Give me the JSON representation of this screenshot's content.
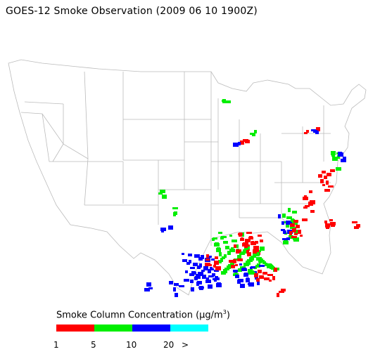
{
  "title": "GOES-12 Smoke Observation (2009 06 10  1900Z)",
  "legend": {
    "title_main": "Smoke Column Concentration (",
    "title_unit": "μg/m",
    "title_exp": "3",
    "title_close": ")",
    "segments": [
      {
        "name": "1-5",
        "color": "#ff0000"
      },
      {
        "name": "5-10",
        "color": "#00ee00"
      },
      {
        "name": "10-20",
        "color": "#0000ff"
      },
      {
        "name": "20+",
        "color": "#00ffff"
      }
    ],
    "ticks": [
      "1",
      "5",
      "10",
      "20",
      ">"
    ]
  },
  "colors": {
    "boundary": "#bbbbbb",
    "low": "#ff0000",
    "mid": "#00ee00",
    "high": "#0000ff",
    "very_high": "#00ffff"
  }
}
